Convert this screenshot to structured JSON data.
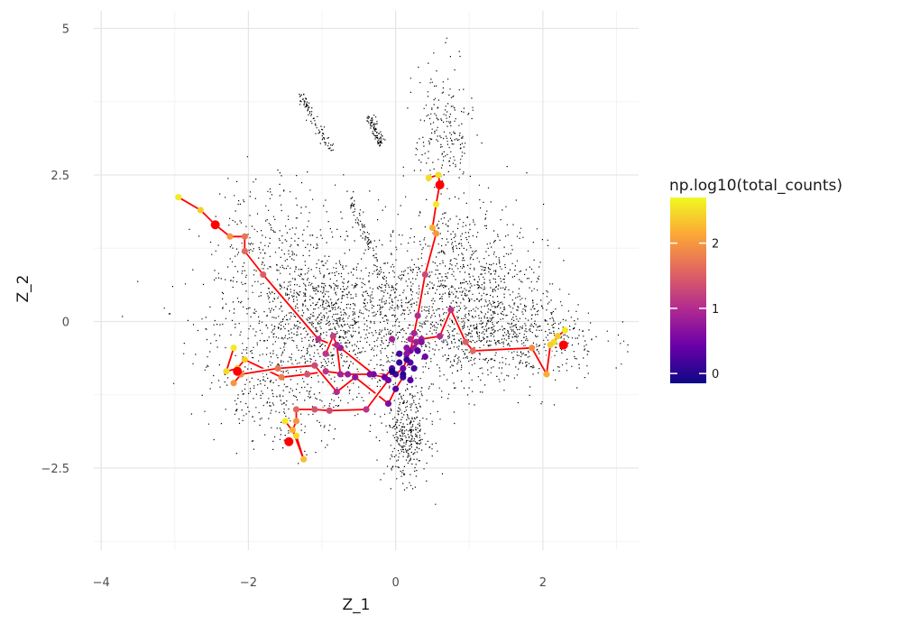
{
  "chart_data": {
    "type": "scatter",
    "xlabel": "Z_1",
    "ylabel": "Z_2",
    "xlim": [
      -4.1,
      3.3
    ],
    "ylim": [
      -3.9,
      5.3
    ],
    "x_ticks": [
      {
        "value": -4,
        "label": "−4"
      },
      {
        "value": -2,
        "label": "−2"
      },
      {
        "value": 0,
        "label": "0"
      },
      {
        "value": 2,
        "label": "2"
      }
    ],
    "y_ticks": [
      {
        "value": -2.5,
        "label": "−2.5"
      },
      {
        "value": 0,
        "label": "0"
      },
      {
        "value": 2.5,
        "label": "2.5"
      },
      {
        "value": 5,
        "label": "5"
      }
    ],
    "grid": true,
    "background_points": {
      "color": "#000000",
      "description_clusters": [
        {
          "cx": -0.9,
          "cy": 0.0,
          "sx": 0.75,
          "sy": 0.6,
          "n": 1400
        },
        {
          "cx": 0.9,
          "cy": 0.5,
          "sx": 0.55,
          "sy": 0.75,
          "n": 1000
        },
        {
          "cx": 1.6,
          "cy": -0.3,
          "sx": 0.6,
          "sy": 0.35,
          "n": 500
        },
        {
          "cx": 0.15,
          "cy": -1.9,
          "sx": 0.15,
          "sy": 0.4,
          "n": 350
        },
        {
          "cx": 0.65,
          "cy": 3.2,
          "sx": 0.2,
          "sy": 0.6,
          "n": 220
        },
        {
          "cx": -1.5,
          "cy": -1.3,
          "sx": 0.5,
          "sy": 0.4,
          "n": 250
        },
        {
          "cx": -1.6,
          "cy": 1.4,
          "sx": 0.5,
          "sy": 0.6,
          "n": 250
        }
      ]
    },
    "color_scale": {
      "name": "np.log10(total_counts)",
      "min": -0.15,
      "max": 2.7,
      "ticks": [
        {
          "value": 0,
          "label": "0"
        },
        {
          "value": 1,
          "label": "1"
        },
        {
          "value": 2,
          "label": "2"
        }
      ],
      "stops": [
        "#0d0887",
        "#6a00a8",
        "#b12a90",
        "#e16462",
        "#fca636",
        "#f0f921"
      ]
    },
    "paths": [
      {
        "color": "#ff0000",
        "outline": "#ffffff",
        "points": [
          [
            -2.95,
            2.12,
            2.6
          ],
          [
            -2.65,
            1.9,
            2.4
          ],
          [
            -2.45,
            1.65,
            1.9
          ],
          [
            -2.25,
            1.45,
            2.0
          ],
          [
            -2.05,
            1.45,
            1.7
          ],
          [
            -2.05,
            1.2,
            1.6
          ],
          [
            -1.8,
            0.8,
            1.5
          ],
          [
            -1.05,
            -0.3,
            1.1
          ],
          [
            -0.75,
            -0.45,
            0.8
          ],
          [
            -0.3,
            -0.9,
            0.5
          ],
          [
            0.0,
            -0.9,
            0.2
          ],
          [
            0.2,
            -0.7,
            0.3
          ]
        ]
      },
      {
        "color": "#ff0000",
        "outline": "#ffffff",
        "points": [
          [
            0.45,
            2.45,
            2.5
          ],
          [
            0.58,
            2.5,
            2.5
          ],
          [
            0.6,
            2.35,
            2.3
          ],
          [
            0.55,
            2.0,
            2.6
          ],
          [
            0.5,
            1.6,
            2.2
          ],
          [
            0.55,
            1.5,
            2.0
          ],
          [
            0.4,
            0.8,
            1.3
          ],
          [
            0.3,
            0.1,
            1.0
          ],
          [
            0.25,
            -0.2,
            0.9
          ],
          [
            0.2,
            -0.5,
            0.5
          ],
          [
            0.1,
            -0.8,
            0.4
          ]
        ]
      },
      {
        "color": "#ff0000",
        "outline": "#ffffff",
        "points": [
          [
            2.3,
            -0.15,
            2.6
          ],
          [
            2.2,
            -0.25,
            2.4
          ],
          [
            2.15,
            -0.35,
            2.5
          ],
          [
            2.1,
            -0.4,
            2.4
          ],
          [
            2.05,
            -0.9,
            2.2
          ],
          [
            1.85,
            -0.45,
            1.9
          ],
          [
            1.05,
            -0.5,
            1.6
          ],
          [
            0.95,
            -0.35,
            1.5
          ],
          [
            0.75,
            0.2,
            1.1
          ],
          [
            0.6,
            -0.25,
            1.0
          ],
          [
            0.35,
            -0.3,
            0.9
          ],
          [
            0.25,
            -0.45,
            0.8
          ],
          [
            0.15,
            -0.55,
            0.7
          ]
        ]
      },
      {
        "color": "#ff0000",
        "outline": "#ffffff",
        "points": [
          [
            -2.2,
            -0.45,
            2.6
          ],
          [
            -2.3,
            -0.85,
            2.5
          ],
          [
            -2.15,
            -0.8,
            2.3
          ],
          [
            -2.05,
            -0.65,
            2.4
          ],
          [
            -1.55,
            -0.95,
            1.8
          ],
          [
            -1.2,
            -0.9,
            1.4
          ],
          [
            -0.95,
            -0.85,
            1.1
          ],
          [
            -0.65,
            -0.9,
            0.8
          ],
          [
            -0.35,
            -0.9,
            0.6
          ],
          [
            -0.15,
            -0.95,
            0.4
          ],
          [
            -0.05,
            -0.8,
            0.3
          ]
        ]
      },
      {
        "color": "#ff0000",
        "outline": "#ffffff",
        "points": [
          [
            -2.2,
            -1.05,
            2.0
          ],
          [
            -2.1,
            -0.9,
            1.9
          ],
          [
            -1.6,
            -0.8,
            1.7
          ],
          [
            -1.1,
            -0.75,
            1.3
          ],
          [
            -0.8,
            -1.2,
            1.0
          ],
          [
            -0.55,
            -0.95,
            0.7
          ],
          [
            -0.1,
            -1.4,
            0.6
          ],
          [
            0.0,
            -1.15,
            0.3
          ],
          [
            0.1,
            -0.95,
            0.2
          ]
        ]
      },
      {
        "color": "#ff0000",
        "outline": "#ffffff",
        "points": [
          [
            -1.5,
            -1.7,
            2.6
          ],
          [
            -1.35,
            -1.95,
            2.5
          ],
          [
            -1.25,
            -2.35,
            2.3
          ],
          [
            -1.4,
            -1.85,
            2.2
          ],
          [
            -1.35,
            -1.7,
            2.0
          ],
          [
            -1.35,
            -1.5,
            1.6
          ],
          [
            -1.1,
            -1.5,
            1.4
          ],
          [
            -0.9,
            -1.52,
            1.3
          ],
          [
            -0.4,
            -1.5,
            1.1
          ],
          [
            -0.1,
            -1.0,
            0.5
          ]
        ]
      },
      {
        "color": "#ff0000",
        "outline": "#ffffff",
        "points": [
          [
            -0.95,
            -0.55,
            1.1
          ],
          [
            -0.85,
            -0.25,
            1.2
          ],
          [
            -0.8,
            -0.4,
            1.0
          ],
          [
            -0.75,
            -0.9,
            0.9
          ]
        ]
      }
    ],
    "endpoints": {
      "color": "#ff0000",
      "points": [
        [
          -2.45,
          1.65
        ],
        [
          -2.15,
          -0.85
        ],
        [
          -1.45,
          -2.05
        ],
        [
          0.6,
          2.33
        ],
        [
          2.28,
          -0.4
        ]
      ]
    },
    "extra_points": [
      [
        0.15,
        -0.65,
        0.1
      ],
      [
        0.3,
        -0.5,
        0.3
      ],
      [
        0.25,
        -0.8,
        0.2
      ],
      [
        0.05,
        -0.7,
        0.1
      ],
      [
        0.35,
        -0.35,
        0.6
      ],
      [
        0.2,
        -0.3,
        1.0
      ],
      [
        0.1,
        -0.9,
        0.0
      ],
      [
        -0.05,
        -0.85,
        -0.1
      ],
      [
        0.2,
        -1.0,
        0.3
      ],
      [
        0.4,
        -0.6,
        0.5
      ],
      [
        -0.05,
        -0.3,
        0.9
      ],
      [
        0.15,
        -0.45,
        0.7
      ],
      [
        0.28,
        -0.35,
        0.8
      ],
      [
        0.05,
        -0.55,
        0.2
      ]
    ]
  }
}
